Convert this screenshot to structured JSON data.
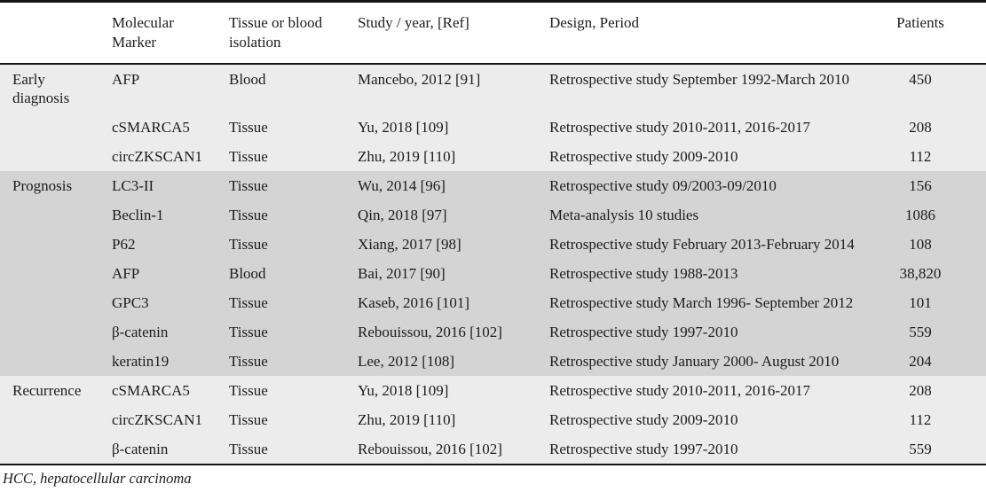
{
  "colors": {
    "section_light_bg": "#ececec",
    "section_dark_bg": "#d4d4d4",
    "rule": "#161616",
    "page_bg": "#ffffff"
  },
  "table": {
    "headers": {
      "category": "",
      "marker": "Molecular Marker",
      "tissue": "Tissue or blood isolation",
      "study": "Study / year, [Ref]",
      "design": "Design, Period",
      "patients": "Patients"
    },
    "sections": [
      {
        "label": "Early diagnosis",
        "shade": "light",
        "rows": [
          {
            "marker": "AFP",
            "tissue": "Blood",
            "study": "Mancebo, 2012 [91]",
            "design": "Retrospective study September 1992-March 2010",
            "patients": "450"
          },
          {
            "marker": "cSMARCA5",
            "tissue": "Tissue",
            "study": "Yu, 2018 [109]",
            "design": "Retrospective study 2010-2011, 2016-2017",
            "patients": "208"
          },
          {
            "marker": "circZKSCAN1",
            "tissue": "Tissue",
            "study": "Zhu, 2019 [110]",
            "design": "Retrospective study 2009-2010",
            "patients": "112"
          }
        ]
      },
      {
        "label": "Prognosis",
        "shade": "dark",
        "rows": [
          {
            "marker": "LC3-II",
            "tissue": "Tissue",
            "study": "Wu, 2014 [96]",
            "design": "Retrospective study 09/2003-09/2010",
            "patients": "156"
          },
          {
            "marker": "Beclin-1",
            "tissue": "Tissue",
            "study": "Qin, 2018 [97]",
            "design": "Meta-analysis 10 studies",
            "patients": "1086"
          },
          {
            "marker": "P62",
            "tissue": "Tissue",
            "study": "Xiang, 2017 [98]",
            "design": "Retrospective study February 2013-February 2014",
            "patients": "108"
          },
          {
            "marker": "AFP",
            "tissue": "Blood",
            "study": "Bai, 2017 [90]",
            "design": "Retrospective study 1988-2013",
            "patients": "38,820"
          },
          {
            "marker": "GPC3",
            "tissue": "Tissue",
            "study": "Kaseb, 2016 [101]",
            "design": "Retrospective study March 1996- September 2012",
            "patients": "101"
          },
          {
            "marker": "β-catenin",
            "tissue": "Tissue",
            "study": "Rebouissou, 2016 [102]",
            "design": "Retrospective study 1997-2010",
            "patients": "559"
          },
          {
            "marker": "keratin19",
            "tissue": "Tissue",
            "study": "Lee, 2012 [108]",
            "design": "Retrospective study January 2000- August 2010",
            "patients": "204"
          }
        ]
      },
      {
        "label": "Recurrence",
        "shade": "light",
        "rows": [
          {
            "marker": "cSMARCA5",
            "tissue": "Tissue",
            "study": "Yu, 2018 [109]",
            "design": "Retrospective study 2010-2011, 2016-2017",
            "patients": "208"
          },
          {
            "marker": "circZKSCAN1",
            "tissue": "Tissue",
            "study": "Zhu, 2019 [110]",
            "design": "Retrospective study 2009-2010",
            "patients": "112"
          },
          {
            "marker": "β-catenin",
            "tissue": "Tissue",
            "study": "Rebouissou, 2016 [102]",
            "design": "Retrospective study 1997-2010",
            "patients": "559"
          }
        ]
      }
    ]
  },
  "footnote": "HCC, hepatocellular carcinoma"
}
